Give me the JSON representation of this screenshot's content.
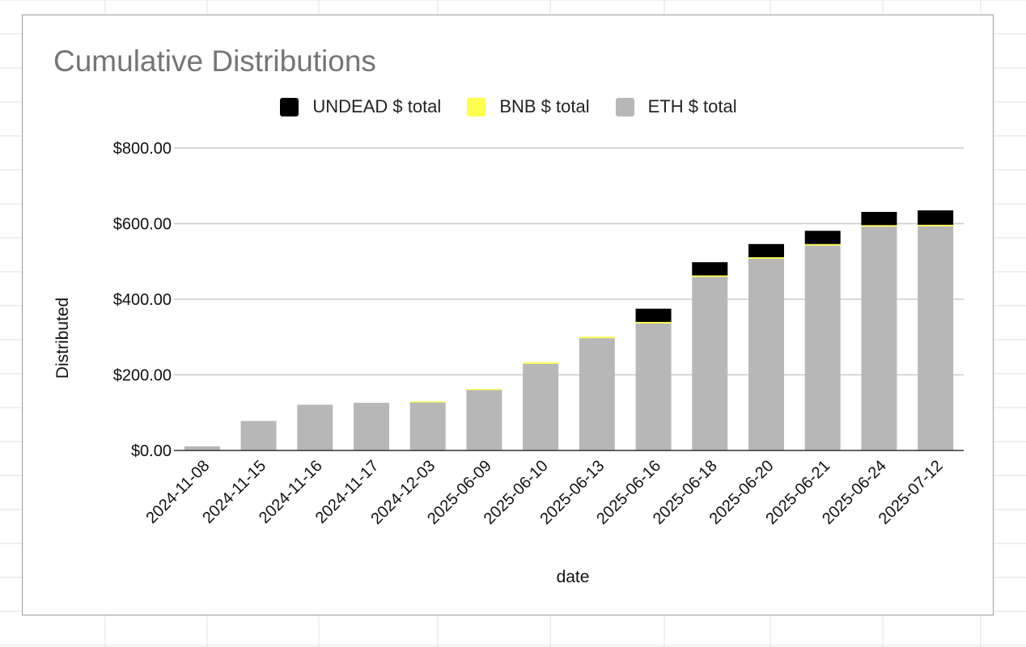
{
  "colors": {
    "undead": "#000000",
    "bnb": "#ffff4d",
    "eth": "#b7b7b7",
    "grid": "#cccccc",
    "baseline": "#333333",
    "title": "#757575",
    "sheet_grid": "#e2e2e2"
  },
  "chart_data": {
    "type": "bar",
    "stacked": true,
    "title": "Cumulative Distributions",
    "xlabel": "date",
    "ylabel": "Distributed",
    "ylim": [
      0,
      800
    ],
    "yticks": [
      0,
      200,
      400,
      600,
      800
    ],
    "ytick_labels": [
      "$0.00",
      "$200.00",
      "$400.00",
      "$600.00",
      "$800.00"
    ],
    "grid": true,
    "legend_position": "top-center",
    "categories": [
      "2024-11-08",
      "2024-11-15",
      "2024-11-16",
      "2024-11-17",
      "2024-12-03",
      "2025-06-09",
      "2025-06-10",
      "2025-06-13",
      "2025-06-16",
      "2025-06-18",
      "2025-06-20",
      "2025-06-21",
      "2025-06-24",
      "2025-07-12"
    ],
    "series": [
      {
        "name": "ETH $ total",
        "key": "eth",
        "values": [
          11,
          78,
          121,
          126,
          127,
          160,
          229,
          297,
          336,
          459,
          507,
          542,
          592,
          593
        ]
      },
      {
        "name": "BNB $ total",
        "key": "bnb",
        "values": [
          0,
          0,
          0,
          0,
          3,
          3,
          4,
          4,
          4,
          4,
          4,
          4,
          4,
          4
        ]
      },
      {
        "name": "UNDEAD $ total",
        "key": "undead",
        "values": [
          0,
          0,
          0,
          0,
          0,
          0,
          0,
          0,
          35,
          35,
          35,
          35,
          35,
          38
        ]
      }
    ],
    "legend_order": [
      "undead",
      "bnb",
      "eth"
    ]
  }
}
